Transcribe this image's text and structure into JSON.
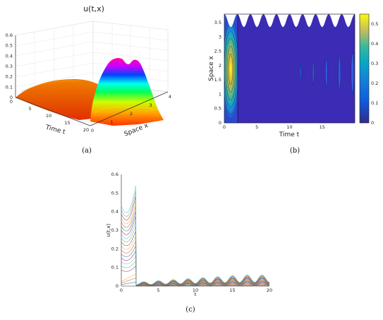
{
  "chart_data": [
    {
      "type": "surface3d",
      "title": "u(t,x)",
      "xlabel": "Space x",
      "ylabel": "Time t",
      "caption": "(a)",
      "x_ticks": [
        "0",
        "1",
        "2",
        "3",
        "4"
      ],
      "t_ticks": [
        "0",
        "5",
        "10",
        "15",
        "20"
      ],
      "z_ticks": [
        "0",
        "0.1",
        "0.2",
        "0.3",
        "0.4",
        "0.5",
        "0.6"
      ],
      "xlim": [
        0,
        4
      ],
      "tlim": [
        0,
        20
      ],
      "zlim": [
        0,
        0.6
      ],
      "colormap": "hsv",
      "peak_value": 0.55
    },
    {
      "type": "heatmap",
      "xlabel": "Time t",
      "ylabel": "Space x",
      "caption": "(b)",
      "x_ticks": [
        "0",
        "5",
        "10",
        "15"
      ],
      "y_ticks": [
        "0",
        "0.5",
        "1",
        "1.5",
        "2",
        "2.5",
        "3",
        "3.5"
      ],
      "colorbar_ticks": [
        "0",
        "0.1",
        "0.2",
        "0.3",
        "0.4",
        "0.5"
      ],
      "xlim": [
        0,
        20
      ],
      "ylim": [
        0,
        3.8
      ],
      "clim": [
        0,
        0.55
      ],
      "colormap": "parula",
      "hotspot": {
        "t_range": [
          0,
          2
        ],
        "x_center": 1.9,
        "max": 0.55
      }
    },
    {
      "type": "line",
      "xlabel": "t",
      "ylabel": "u(t,x)",
      "caption": "(c)",
      "x_ticks": [
        "0",
        "5",
        "10",
        "15",
        "20"
      ],
      "y_ticks": [
        "0",
        "0.1",
        "0.2",
        "0.3",
        "0.4",
        "0.5",
        "0.6"
      ],
      "xlim": [
        0,
        20
      ],
      "ylim": [
        0,
        0.6
      ],
      "series_count": 20,
      "max_value": 0.55,
      "drop_time": 2,
      "oscillation_period": 2,
      "late_max": 0.06
    }
  ]
}
